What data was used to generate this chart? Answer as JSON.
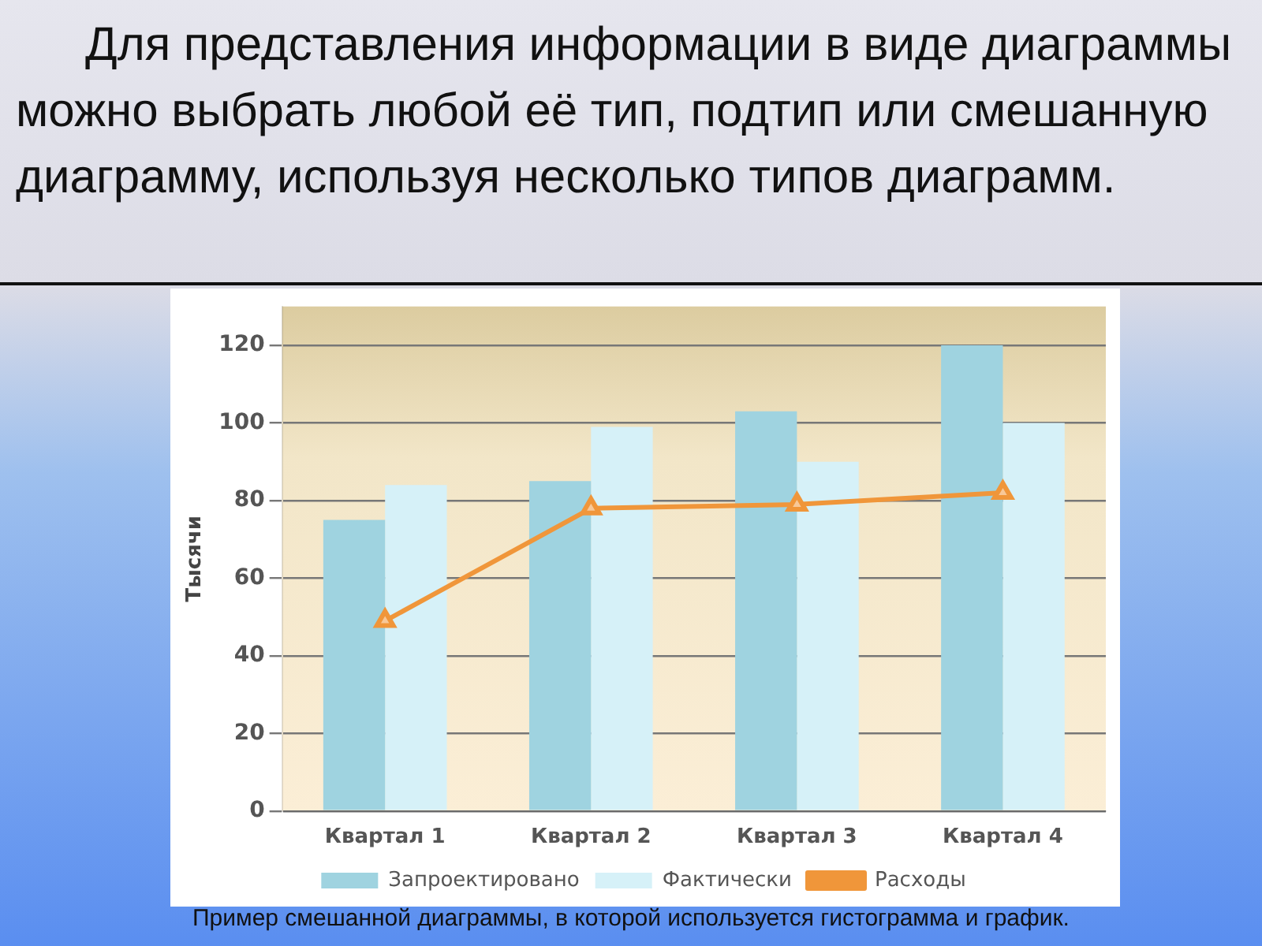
{
  "chart_data": {
    "type": "bar",
    "title": "Для представления информации в виде диаграммы можно выбрать любой её тип, подтип или смешанную диаграмму, используя несколько типов диаграмм.",
    "ylabel": "Тысячи",
    "categories": [
      "Квартал 1",
      "Квартал 2",
      "Квартал 3",
      "Квартал 4"
    ],
    "series": [
      {
        "name": "Запроектировано",
        "color": "#9fd3e0",
        "values": [
          75,
          85,
          103,
          120
        ]
      },
      {
        "name": "Фактически",
        "color": "#d6f1f8",
        "values": [
          84,
          99,
          90,
          100
        ]
      },
      {
        "name": "Расходы",
        "type": "line",
        "color": "#f0963a",
        "values": [
          49,
          78,
          79,
          82
        ]
      }
    ],
    "ylim": [
      0,
      130
    ],
    "yticks": [
      0,
      20,
      40,
      60,
      80,
      100,
      120
    ],
    "grid": "y",
    "legend": "bottom",
    "marker": "triangle",
    "annotations": [
      "Пример смешанной диаграммы, в которой используется гистограмма и график."
    ]
  }
}
